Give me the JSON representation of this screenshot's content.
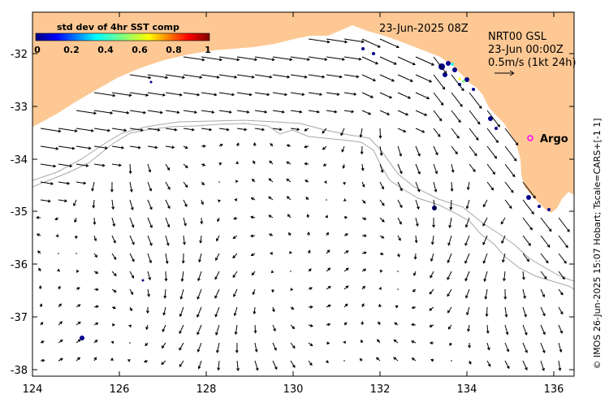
{
  "map": {
    "timestamp": "23-Jun-2025 08Z",
    "product": "NRT00 GSL",
    "product_time": "23-Jun 00:00Z",
    "vector_scale": "0.5m/s (1kt 24h)",
    "credit": "© IMOS 26-Jun-2025 15:07 Hobart; Tscale=CARS+[-1 1]",
    "argo_label": "Argo",
    "x_ticks": [
      "124",
      "126",
      "128",
      "130",
      "132",
      "134",
      "136"
    ],
    "y_ticks": [
      "-32",
      "-33",
      "-34",
      "-35",
      "-36",
      "-37",
      "-38"
    ],
    "lon_range": [
      124,
      136.5
    ],
    "lat_range": [
      -38.2,
      -31.25
    ]
  },
  "colorbar": {
    "title": "std dev of 4hr SST comp",
    "labels": [
      "0",
      "0.2",
      "0.4",
      "0.6",
      "0.8",
      "1"
    ],
    "range": [
      0,
      1
    ]
  },
  "colors": {
    "land": "#fdc894",
    "ocean": "#ffffff",
    "isobath": "#a8a8a8",
    "arrow": "#000000",
    "argo_marker": "#ff00ff",
    "cloud": "#00008b"
  }
}
